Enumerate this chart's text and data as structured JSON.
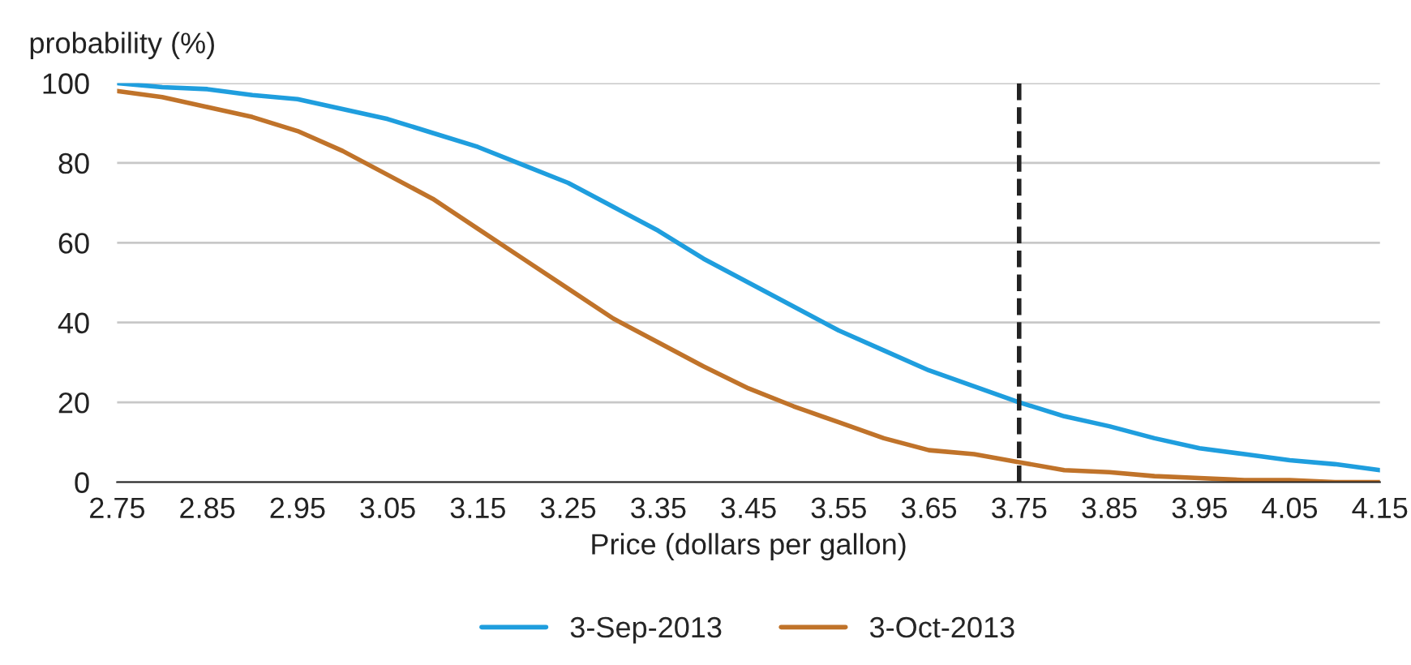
{
  "chart_data": {
    "type": "line",
    "xlabel": "Price (dollars per gallon)",
    "ylabel": "probability (%)",
    "x": [
      2.75,
      2.8,
      2.85,
      2.9,
      2.95,
      3.0,
      3.05,
      3.1,
      3.15,
      3.2,
      3.25,
      3.3,
      3.35,
      3.4,
      3.45,
      3.5,
      3.55,
      3.6,
      3.65,
      3.7,
      3.75,
      3.8,
      3.85,
      3.9,
      3.95,
      4.0,
      4.05,
      4.1,
      4.15
    ],
    "series": [
      {
        "name": "3-Sep-2013",
        "color": "#1f9ede",
        "values": [
          100,
          99,
          98.5,
          97,
          96,
          93.5,
          91,
          87.5,
          84,
          79.5,
          75,
          69,
          63,
          56,
          50,
          44,
          38,
          33,
          28,
          24,
          20,
          16.5,
          14,
          11,
          8.5,
          7,
          5.5,
          4.5,
          3
        ]
      },
      {
        "name": "3-Oct-2013",
        "color": "#c0732a",
        "values": [
          98,
          96.5,
          94,
          91.5,
          88,
          83,
          77,
          71,
          63.5,
          56,
          48.5,
          41,
          35,
          29,
          23.5,
          19,
          15,
          11,
          8,
          7,
          5,
          3,
          2.5,
          1.5,
          1,
          0.5,
          0.5,
          0,
          0
        ]
      }
    ],
    "xlim": [
      2.75,
      4.15
    ],
    "xticks": [
      2.75,
      2.85,
      2.95,
      3.05,
      3.15,
      3.25,
      3.35,
      3.45,
      3.55,
      3.65,
      3.75,
      3.85,
      3.95,
      4.05,
      4.15
    ],
    "ylim": [
      0,
      100
    ],
    "yticks": [
      0,
      20,
      40,
      60,
      80,
      100
    ],
    "ref_lines": [
      {
        "axis": "x",
        "value": 3.75,
        "color": "#222222",
        "line_style": "dashed"
      }
    ],
    "grid": "y",
    "legend": "bottom",
    "line_style": "solid"
  }
}
